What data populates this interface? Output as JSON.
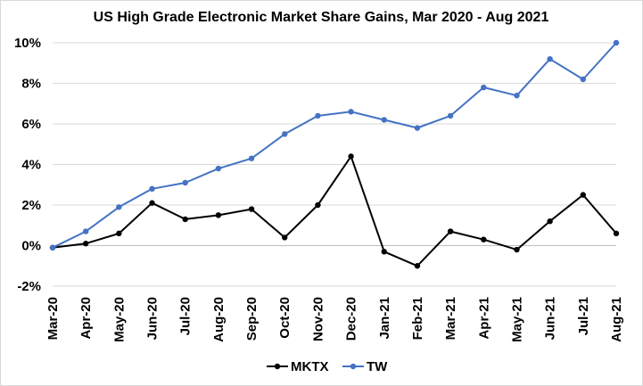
{
  "chart_data": {
    "type": "line",
    "title": "US High Grade Electronic Market Share Gains, Mar 2020 - Aug 2021",
    "xlabel": "",
    "ylabel": "",
    "ylim": [
      -2,
      10
    ],
    "ytick_values": [
      -2,
      0,
      2,
      4,
      6,
      8,
      10
    ],
    "ytick_labels": [
      "-2%",
      "0%",
      "2%",
      "4%",
      "6%",
      "8%",
      "10%"
    ],
    "grid": true,
    "legend_position": "bottom-center",
    "categories": [
      "Mar-20",
      "Apr-20",
      "May-20",
      "Jun-20",
      "Jul-20",
      "Aug-20",
      "Sep-20",
      "Oct-20",
      "Nov-20",
      "Dec-20",
      "Jan-21",
      "Feb-21",
      "Mar-21",
      "Apr-21",
      "May-21",
      "Jun-21",
      "Jul-21",
      "Aug-21"
    ],
    "series": [
      {
        "name": "MKTX",
        "color": "#000000",
        "values": [
          -0.1,
          0.1,
          0.6,
          2.1,
          1.3,
          1.5,
          1.8,
          0.4,
          2.0,
          4.4,
          -0.3,
          -1.0,
          0.7,
          0.3,
          -0.2,
          1.2,
          2.5,
          0.6
        ]
      },
      {
        "name": "TW",
        "color": "#4472c4",
        "values": [
          -0.1,
          0.7,
          1.9,
          2.8,
          3.1,
          3.8,
          4.3,
          5.5,
          6.4,
          6.6,
          6.2,
          5.8,
          6.4,
          7.8,
          7.4,
          9.2,
          8.2,
          10.0
        ]
      }
    ]
  }
}
